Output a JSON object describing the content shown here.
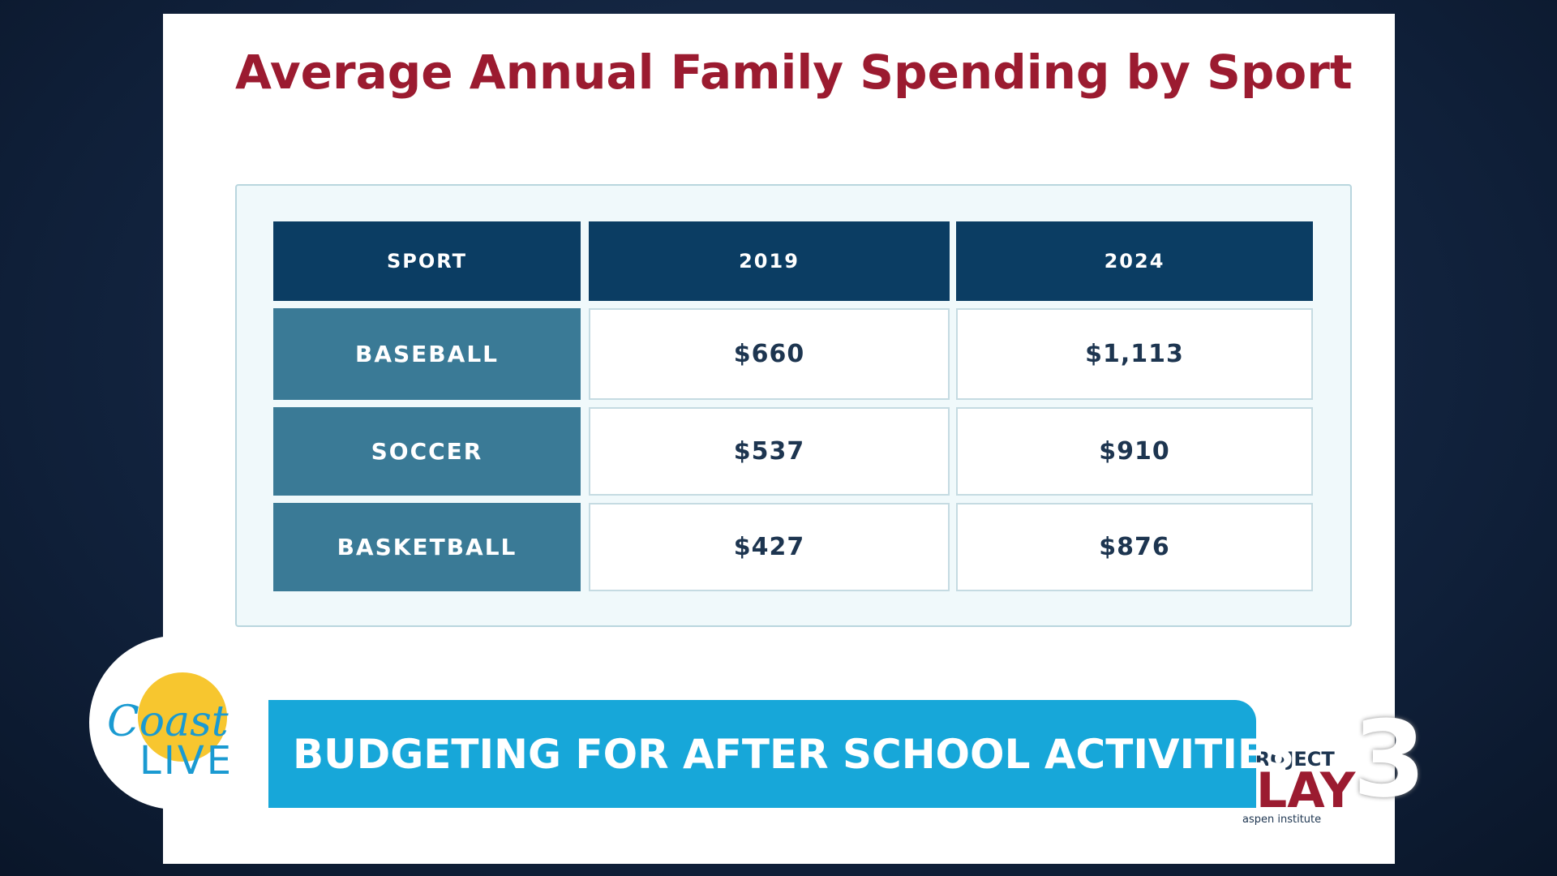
{
  "header": {
    "title": "Average Annual Family Spending by Sport"
  },
  "table": {
    "columns": [
      "SPORT",
      "2019",
      "2024"
    ],
    "rows": [
      [
        "BASEBALL",
        "$660",
        "$1,113"
      ],
      [
        "SOCCER",
        "$537",
        "$910"
      ],
      [
        "BASKETBALL",
        "$427",
        "$876"
      ]
    ]
  },
  "banner": {
    "text": "BUDGETING FOR AFTER SCHOOL ACTIVITIES"
  },
  "show_logo": {
    "line1": "Coast",
    "line2": "LIVE"
  },
  "sponsor_logo": {
    "line1": "PROJECT",
    "line2": "PLAY",
    "line3": "aspen institute"
  },
  "channel_logo": {
    "number": "3"
  }
}
